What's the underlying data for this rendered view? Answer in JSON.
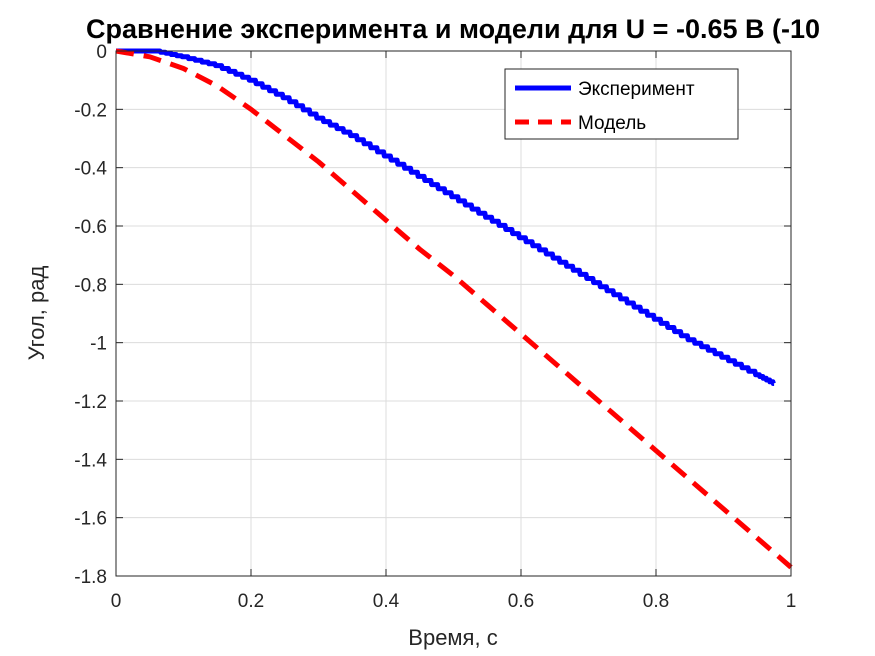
{
  "chart_data": {
    "type": "line",
    "title": "Сравнение эксперимента и модели для U = -0.65 В (-10",
    "xlabel": "Время, с",
    "ylabel": "Угол, рад",
    "xlim": [
      0,
      1
    ],
    "ylim": [
      -1.8,
      0
    ],
    "xticks": [
      "0",
      "0.2",
      "0.4",
      "0.6",
      "0.8",
      "1"
    ],
    "yticks": [
      "0",
      "-0.2",
      "-0.4",
      "-0.6",
      "-0.8",
      "-1",
      "-1.2",
      "-1.4",
      "-1.6",
      "-1.8"
    ],
    "grid": true,
    "legend_position": "top-right",
    "series": [
      {
        "name": "Эксперимент",
        "color": "#0000ff",
        "style": "solid",
        "x": [
          0,
          0.06,
          0.1,
          0.15,
          0.2,
          0.25,
          0.3,
          0.35,
          0.4,
          0.45,
          0.5,
          0.55,
          0.6,
          0.65,
          0.7,
          0.75,
          0.8,
          0.85,
          0.9,
          0.95,
          0.975
        ],
        "y": [
          0,
          0,
          -0.02,
          -0.05,
          -0.1,
          -0.16,
          -0.23,
          -0.29,
          -0.36,
          -0.43,
          -0.5,
          -0.57,
          -0.64,
          -0.71,
          -0.78,
          -0.85,
          -0.92,
          -0.99,
          -1.05,
          -1.11,
          -1.14
        ]
      },
      {
        "name": "Модель",
        "color": "#ff0000",
        "style": "dashed",
        "x": [
          0,
          0.05,
          0.1,
          0.15,
          0.2,
          0.25,
          0.3,
          0.35,
          0.4,
          0.45,
          0.5,
          0.55,
          0.6,
          0.65,
          0.7,
          0.75,
          0.8,
          0.85,
          0.9,
          0.95,
          1.0
        ],
        "y": [
          0,
          -0.02,
          -0.06,
          -0.12,
          -0.2,
          -0.29,
          -0.38,
          -0.48,
          -0.58,
          -0.68,
          -0.77,
          -0.87,
          -0.97,
          -1.07,
          -1.17,
          -1.27,
          -1.37,
          -1.47,
          -1.57,
          -1.67,
          -1.77
        ]
      }
    ]
  }
}
